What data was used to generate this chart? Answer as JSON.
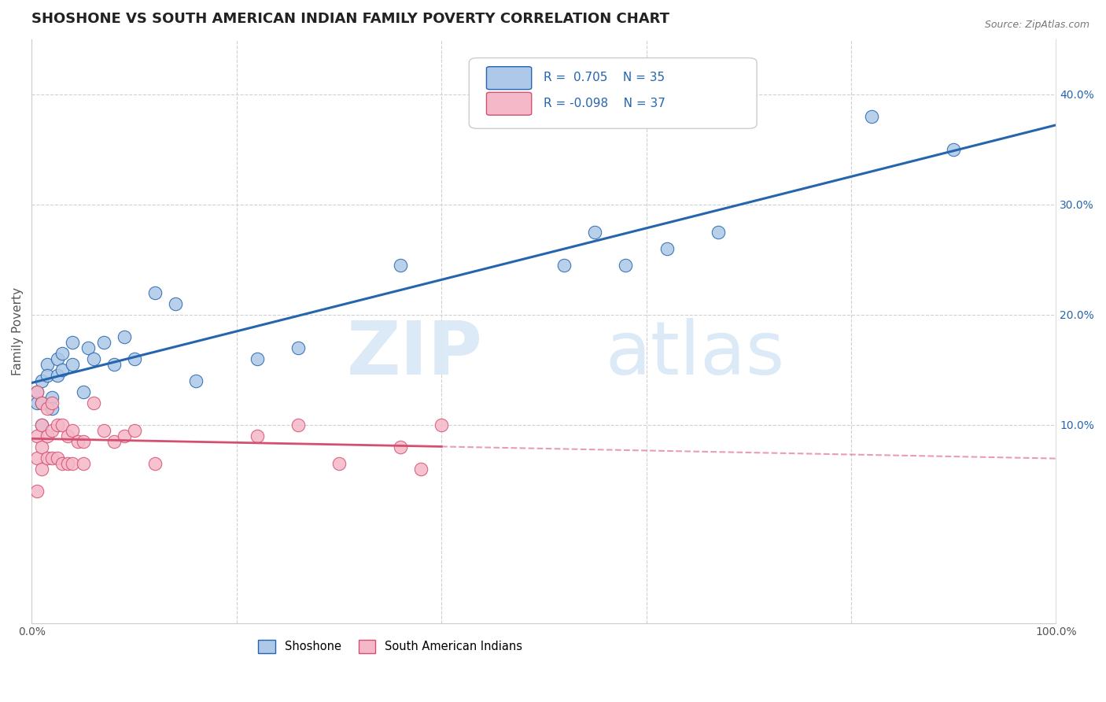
{
  "title": "SHOSHONE VS SOUTH AMERICAN INDIAN FAMILY POVERTY CORRELATION CHART",
  "source": "Source: ZipAtlas.com",
  "ylabel": "Family Poverty",
  "xlim": [
    0,
    1.0
  ],
  "ylim": [
    -0.08,
    0.45
  ],
  "xticks": [
    0.0,
    0.2,
    0.4,
    0.6,
    0.8,
    1.0
  ],
  "xticklabels": [
    "0.0%",
    "",
    "",
    "",
    "",
    "100.0%"
  ],
  "ytick_vals": [
    0.1,
    0.2,
    0.3,
    0.4
  ],
  "ytick_labels_right": [
    "10.0%",
    "20.0%",
    "30.0%",
    "40.0%"
  ],
  "shoshone_color": "#adc8e8",
  "south_american_color": "#f5b8c8",
  "shoshone_line_color": "#2565ae",
  "south_american_line_color": "#d45070",
  "background_color": "#ffffff",
  "grid_color": "#d0d0d0",
  "title_fontsize": 13,
  "label_fontsize": 11,
  "tick_fontsize": 10,
  "legend_label_shoshone": "Shoshone",
  "legend_label_south_american": "South American Indians",
  "shoshone_x": [
    0.005,
    0.005,
    0.01,
    0.01,
    0.01,
    0.015,
    0.015,
    0.02,
    0.02,
    0.025,
    0.025,
    0.03,
    0.03,
    0.04,
    0.04,
    0.05,
    0.055,
    0.06,
    0.07,
    0.08,
    0.09,
    0.1,
    0.12,
    0.14,
    0.16,
    0.22,
    0.26,
    0.36,
    0.52,
    0.55,
    0.58,
    0.62,
    0.67,
    0.82,
    0.9
  ],
  "shoshone_y": [
    0.13,
    0.12,
    0.14,
    0.12,
    0.1,
    0.155,
    0.145,
    0.125,
    0.115,
    0.16,
    0.145,
    0.165,
    0.15,
    0.175,
    0.155,
    0.13,
    0.17,
    0.16,
    0.175,
    0.155,
    0.18,
    0.16,
    0.22,
    0.21,
    0.14,
    0.16,
    0.17,
    0.245,
    0.245,
    0.275,
    0.245,
    0.26,
    0.275,
    0.38,
    0.35
  ],
  "south_american_x": [
    0.005,
    0.005,
    0.005,
    0.005,
    0.01,
    0.01,
    0.01,
    0.01,
    0.015,
    0.015,
    0.015,
    0.02,
    0.02,
    0.02,
    0.025,
    0.025,
    0.03,
    0.03,
    0.035,
    0.035,
    0.04,
    0.04,
    0.045,
    0.05,
    0.05,
    0.06,
    0.07,
    0.08,
    0.09,
    0.1,
    0.12,
    0.22,
    0.26,
    0.3,
    0.36,
    0.38,
    0.4
  ],
  "south_american_y": [
    0.13,
    0.09,
    0.07,
    0.04,
    0.12,
    0.1,
    0.08,
    0.06,
    0.115,
    0.09,
    0.07,
    0.12,
    0.095,
    0.07,
    0.1,
    0.07,
    0.1,
    0.065,
    0.09,
    0.065,
    0.095,
    0.065,
    0.085,
    0.085,
    0.065,
    0.12,
    0.095,
    0.085,
    0.09,
    0.095,
    0.065,
    0.09,
    0.1,
    0.065,
    0.08,
    0.06,
    0.1
  ],
  "watermark_zip": "ZIP",
  "watermark_atlas": "atlas"
}
